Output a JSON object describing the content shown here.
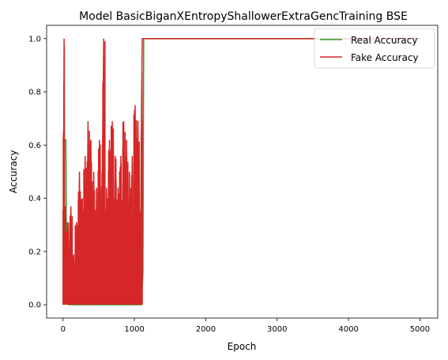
{
  "chart_data": {
    "type": "line",
    "title": "Model BasicBiganXEntropyShallowerExtraGencTraining BSE",
    "xlabel": "Epoch",
    "ylabel": "Accuracy",
    "xlim": [
      -230,
      5250
    ],
    "ylim": [
      -0.05,
      1.05
    ],
    "xticks": [
      0,
      1000,
      2000,
      3000,
      4000,
      5000
    ],
    "yticks": [
      0.0,
      0.2,
      0.4,
      0.6,
      0.8,
      1.0
    ],
    "xtick_labels": [
      "0",
      "1000",
      "2000",
      "3000",
      "4000",
      "5000"
    ],
    "ytick_labels": [
      "0.0",
      "0.2",
      "0.4",
      "0.6",
      "0.8",
      "1.0"
    ],
    "legend_position": "top-right",
    "series": [
      {
        "name": "Real Accuracy",
        "color": "#2ca02c",
        "noisy_range": [
          0,
          1120
        ],
        "x": [
          0,
          10,
          20,
          30,
          40,
          50,
          60,
          80,
          100,
          1100,
          1120,
          1130,
          5000
        ],
        "y": [
          0,
          0.31,
          0.62,
          0.62,
          0.62,
          0.0,
          0.31,
          0.0,
          0.0,
          0.0,
          0.12,
          1.0,
          1.0
        ]
      },
      {
        "name": "Fake Accuracy",
        "color": "#d62728",
        "noisy_range": [
          0,
          1110
        ],
        "x": [
          0,
          15,
          25,
          35,
          50,
          70,
          90,
          110,
          130,
          150,
          170,
          190,
          210,
          230,
          250,
          270,
          290,
          310,
          330,
          350,
          370,
          390,
          410,
          430,
          450,
          470,
          490,
          510,
          530,
          550,
          570,
          590,
          610,
          630,
          650,
          670,
          690,
          710,
          730,
          750,
          770,
          790,
          810,
          830,
          850,
          870,
          890,
          910,
          930,
          950,
          970,
          990,
          1010,
          1030,
          1050,
          1070,
          1090,
          1100,
          1110,
          5000
        ],
        "y": [
          0,
          1.0,
          0.0,
          0.37,
          0.0,
          0.31,
          0.0,
          0.37,
          0.0,
          0.19,
          0.0,
          0.31,
          0.0,
          0.5,
          0.0,
          0.4,
          0.0,
          0.56,
          0.0,
          0.69,
          0.0,
          0.62,
          0.0,
          0.5,
          0.0,
          0.44,
          0.0,
          0.62,
          0.0,
          0.5,
          1.0,
          0.0,
          0.44,
          0.0,
          0.62,
          0.0,
          0.69,
          0.0,
          0.56,
          0.0,
          0.44,
          0.0,
          0.56,
          0.0,
          0.69,
          0.0,
          0.62,
          0.0,
          0.5,
          0.0,
          0.56,
          0.0,
          0.75,
          0.0,
          0.69,
          0.0,
          0.37,
          0.75,
          1.0,
          1.0
        ]
      }
    ]
  }
}
